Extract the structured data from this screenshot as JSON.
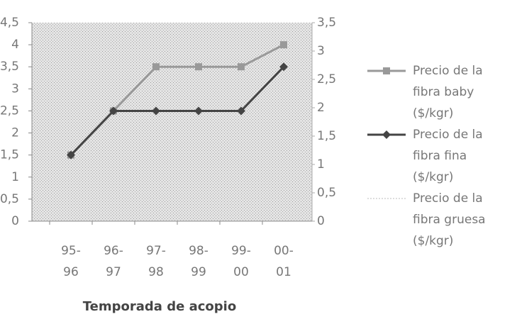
{
  "chart_data": {
    "type": "line",
    "x_label": "Temporada de acopio",
    "categories": [
      "95-96",
      "96-97",
      "97-98",
      "98-99",
      "99-00",
      "00-01"
    ],
    "series": [
      {
        "name": "Precio de la fibra baby ($/kgr)",
        "color": "#999999",
        "marker": "square",
        "values": [
          1.5,
          2.5,
          3.5,
          3.5,
          3.5,
          4
        ]
      },
      {
        "name": "Precio de la fibra fina ($/kgr)",
        "color": "#444444",
        "marker": "diamond",
        "values": [
          1.5,
          2.5,
          2.5,
          2.5,
          2.5,
          3.5
        ]
      },
      {
        "name": "Precio de la fibra gruesa ($/kgr)",
        "color": "#bbbbbb",
        "axis": "y2",
        "values": [
          null,
          null,
          null,
          null,
          null,
          null
        ]
      }
    ],
    "ylim": [
      0,
      4.5
    ],
    "yticks": [
      0,
      {
        "value": 0.5,
        "label": "0,5"
      },
      1,
      {
        "value": 1.5,
        "label": "1,5"
      },
      2,
      {
        "value": 2.5,
        "label": "2,5"
      },
      3,
      {
        "value": 3.5,
        "label": "3,5"
      },
      4,
      {
        "value": 4.5,
        "label": "4,5"
      }
    ],
    "y2lim": [
      0,
      3.5
    ],
    "y2ticks": [
      0,
      {
        "value": 0.5,
        "label": "0,5"
      },
      1,
      {
        "value": 1.5,
        "label": "1,5"
      },
      2,
      {
        "value": 2.5,
        "label": "2,5"
      },
      3,
      {
        "value": 3.5,
        "label": "3,5"
      }
    ],
    "legend": "right"
  }
}
